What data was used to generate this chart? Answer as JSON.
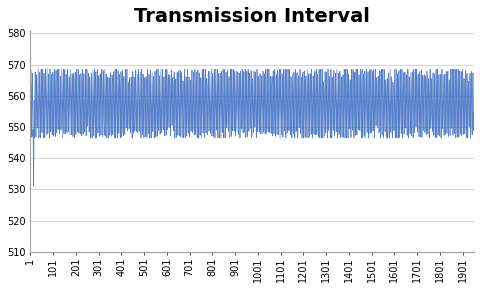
{
  "title": "Transmission Interval",
  "ylim": [
    510,
    581
  ],
  "yticks": [
    510,
    520,
    530,
    540,
    550,
    560,
    570,
    580
  ],
  "xlim": [
    1,
    1951
  ],
  "xtick_positions": [
    1,
    101,
    201,
    301,
    401,
    501,
    601,
    701,
    801,
    901,
    1001,
    1101,
    1201,
    1301,
    1401,
    1501,
    1601,
    1701,
    1801,
    1901
  ],
  "line_color": "#4472C4",
  "bg_color": "#FFFFFF",
  "title_fontsize": 14,
  "tick_fontsize": 7,
  "data_min": 547,
  "data_max": 568,
  "dip_index": 14,
  "dip_value": 531
}
